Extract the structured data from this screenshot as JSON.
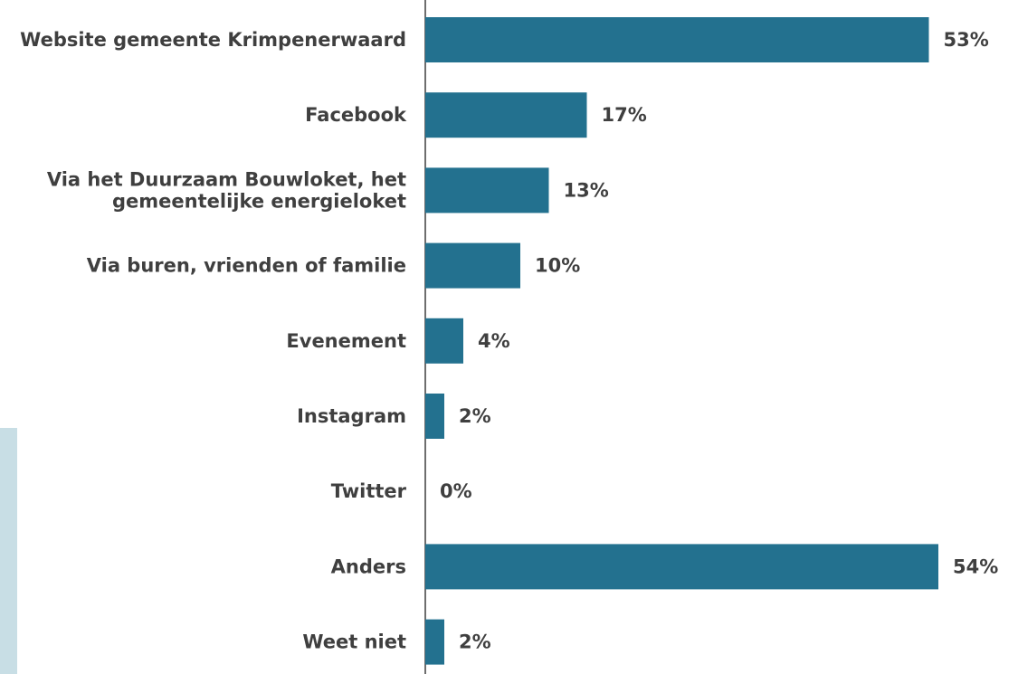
{
  "colors": {
    "bar": "#23718F",
    "text": "#3F3F3F",
    "axis": "#3F3F3F",
    "side_panel": "#C8DEE5"
  },
  "chart_data": {
    "type": "bar",
    "orientation": "horizontal",
    "title": "",
    "xlabel": "",
    "ylabel": "",
    "categories": [
      [
        "Website gemeente Krimpenerwaard"
      ],
      [
        "Facebook"
      ],
      [
        "Via het Duurzaam Bouwloket, het",
        "gemeentelijke energieloket"
      ],
      [
        "Via buren, vrienden of familie"
      ],
      [
        "Evenement"
      ],
      [
        "Instagram"
      ],
      [
        "Twitter"
      ],
      [
        "Anders"
      ],
      [
        "Weet niet"
      ]
    ],
    "values": [
      53,
      17,
      13,
      10,
      4,
      2,
      0,
      54,
      2
    ],
    "value_labels": [
      "53%",
      "17%",
      "13%",
      "10%",
      "4%",
      "2%",
      "0%",
      "54%",
      "2%"
    ],
    "unit": "%",
    "xlim": [
      0,
      60
    ],
    "grid": false,
    "legend": "none"
  }
}
